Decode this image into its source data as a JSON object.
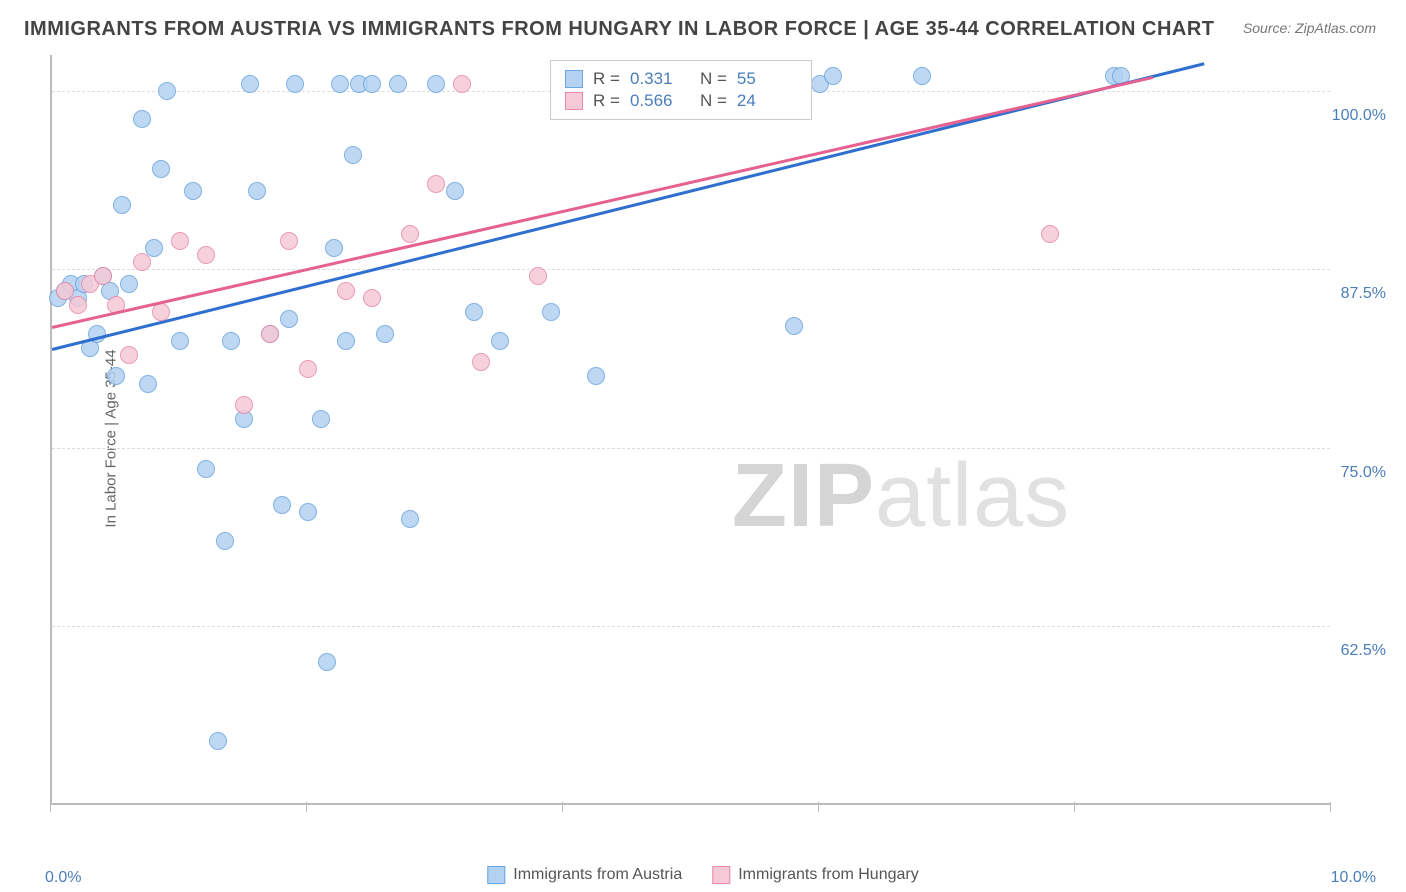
{
  "title": "IMMIGRANTS FROM AUSTRIA VS IMMIGRANTS FROM HUNGARY IN LABOR FORCE | AGE 35-44 CORRELATION CHART",
  "source": "Source: ZipAtlas.com",
  "y_axis_label": "In Labor Force | Age 35-44",
  "watermark_bold": "ZIP",
  "watermark_light": "atlas",
  "chart": {
    "type": "scatter",
    "xlim": [
      0.0,
      10.0
    ],
    "ylim": [
      50.0,
      102.5
    ],
    "x_ticks": [
      0.0,
      10.0
    ],
    "x_tick_labels": [
      "0.0%",
      "10.0%"
    ],
    "x_tick_marks": [
      0.0,
      2.0,
      4.0,
      6.0,
      8.0,
      10.0
    ],
    "y_ticks": [
      62.5,
      75.0,
      87.5,
      100.0
    ],
    "y_tick_labels": [
      "62.5%",
      "75.0%",
      "87.5%",
      "100.0%"
    ],
    "grid_color": "#dddddd",
    "background_color": "#ffffff",
    "axis_line_color": "#bbbbbb",
    "series": [
      {
        "name": "Immigrants from Austria",
        "marker_fill": "#b3d1f0",
        "marker_stroke": "#6aa6e0",
        "line_color": "#2f6fd0",
        "r_value": "0.331",
        "n_value": "55",
        "trend": {
          "x1": 0.0,
          "y1": 82.0,
          "x2": 9.0,
          "y2": 102.0
        },
        "points": [
          [
            0.05,
            85.5
          ],
          [
            0.1,
            86.0
          ],
          [
            0.15,
            86.5
          ],
          [
            0.2,
            85.5
          ],
          [
            0.25,
            86.5
          ],
          [
            0.3,
            82.0
          ],
          [
            0.35,
            83.0
          ],
          [
            0.4,
            87.0
          ],
          [
            0.45,
            86.0
          ],
          [
            0.5,
            80.0
          ],
          [
            0.55,
            92.0
          ],
          [
            0.6,
            86.5
          ],
          [
            0.7,
            98.0
          ],
          [
            0.75,
            79.5
          ],
          [
            0.8,
            89.0
          ],
          [
            0.85,
            94.5
          ],
          [
            0.9,
            100.0
          ],
          [
            1.0,
            82.5
          ],
          [
            1.1,
            93.0
          ],
          [
            1.2,
            73.5
          ],
          [
            1.3,
            54.5
          ],
          [
            1.35,
            68.5
          ],
          [
            1.4,
            82.5
          ],
          [
            1.5,
            77.0
          ],
          [
            1.55,
            100.5
          ],
          [
            1.6,
            93.0
          ],
          [
            1.7,
            83.0
          ],
          [
            1.8,
            71.0
          ],
          [
            1.85,
            84.0
          ],
          [
            1.9,
            100.5
          ],
          [
            2.0,
            70.5
          ],
          [
            2.1,
            77.0
          ],
          [
            2.15,
            60.0
          ],
          [
            2.2,
            89.0
          ],
          [
            2.25,
            100.5
          ],
          [
            2.3,
            82.5
          ],
          [
            2.35,
            95.5
          ],
          [
            2.4,
            100.5
          ],
          [
            2.5,
            100.5
          ],
          [
            2.6,
            83.0
          ],
          [
            2.7,
            100.5
          ],
          [
            2.8,
            70.0
          ],
          [
            3.0,
            100.5
          ],
          [
            3.15,
            93.0
          ],
          [
            3.3,
            84.5
          ],
          [
            3.5,
            82.5
          ],
          [
            3.9,
            84.5
          ],
          [
            4.25,
            80.0
          ],
          [
            5.2,
            100.5
          ],
          [
            5.8,
            83.5
          ],
          [
            6.0,
            100.5
          ],
          [
            6.1,
            101.0
          ],
          [
            6.8,
            101.0
          ],
          [
            8.3,
            101.0
          ],
          [
            8.35,
            101.0
          ]
        ]
      },
      {
        "name": "Immigrants from Hungary",
        "marker_fill": "#f5c9d6",
        "marker_stroke": "#e88aa8",
        "line_color": "#e66090",
        "r_value": "0.566",
        "n_value": "24",
        "trend": {
          "x1": 0.0,
          "y1": 83.5,
          "x2": 8.6,
          "y2": 101.0
        },
        "points": [
          [
            0.1,
            86.0
          ],
          [
            0.2,
            85.0
          ],
          [
            0.3,
            86.5
          ],
          [
            0.4,
            87.0
          ],
          [
            0.5,
            85.0
          ],
          [
            0.6,
            81.5
          ],
          [
            0.7,
            88.0
          ],
          [
            0.85,
            84.5
          ],
          [
            1.0,
            89.5
          ],
          [
            1.2,
            88.5
          ],
          [
            1.5,
            78.0
          ],
          [
            1.7,
            83.0
          ],
          [
            1.85,
            89.5
          ],
          [
            2.0,
            80.5
          ],
          [
            2.3,
            86.0
          ],
          [
            2.5,
            85.5
          ],
          [
            2.8,
            90.0
          ],
          [
            3.0,
            93.5
          ],
          [
            3.2,
            100.5
          ],
          [
            3.35,
            81.0
          ],
          [
            3.8,
            87.0
          ],
          [
            4.3,
            100.5
          ],
          [
            4.8,
            100.5
          ],
          [
            7.8,
            90.0
          ]
        ]
      }
    ]
  },
  "legend_top": {
    "r_label": "R =",
    "n_label": "N ="
  },
  "legend_bottom": [
    "Immigrants from Austria",
    "Immigrants from Hungary"
  ]
}
